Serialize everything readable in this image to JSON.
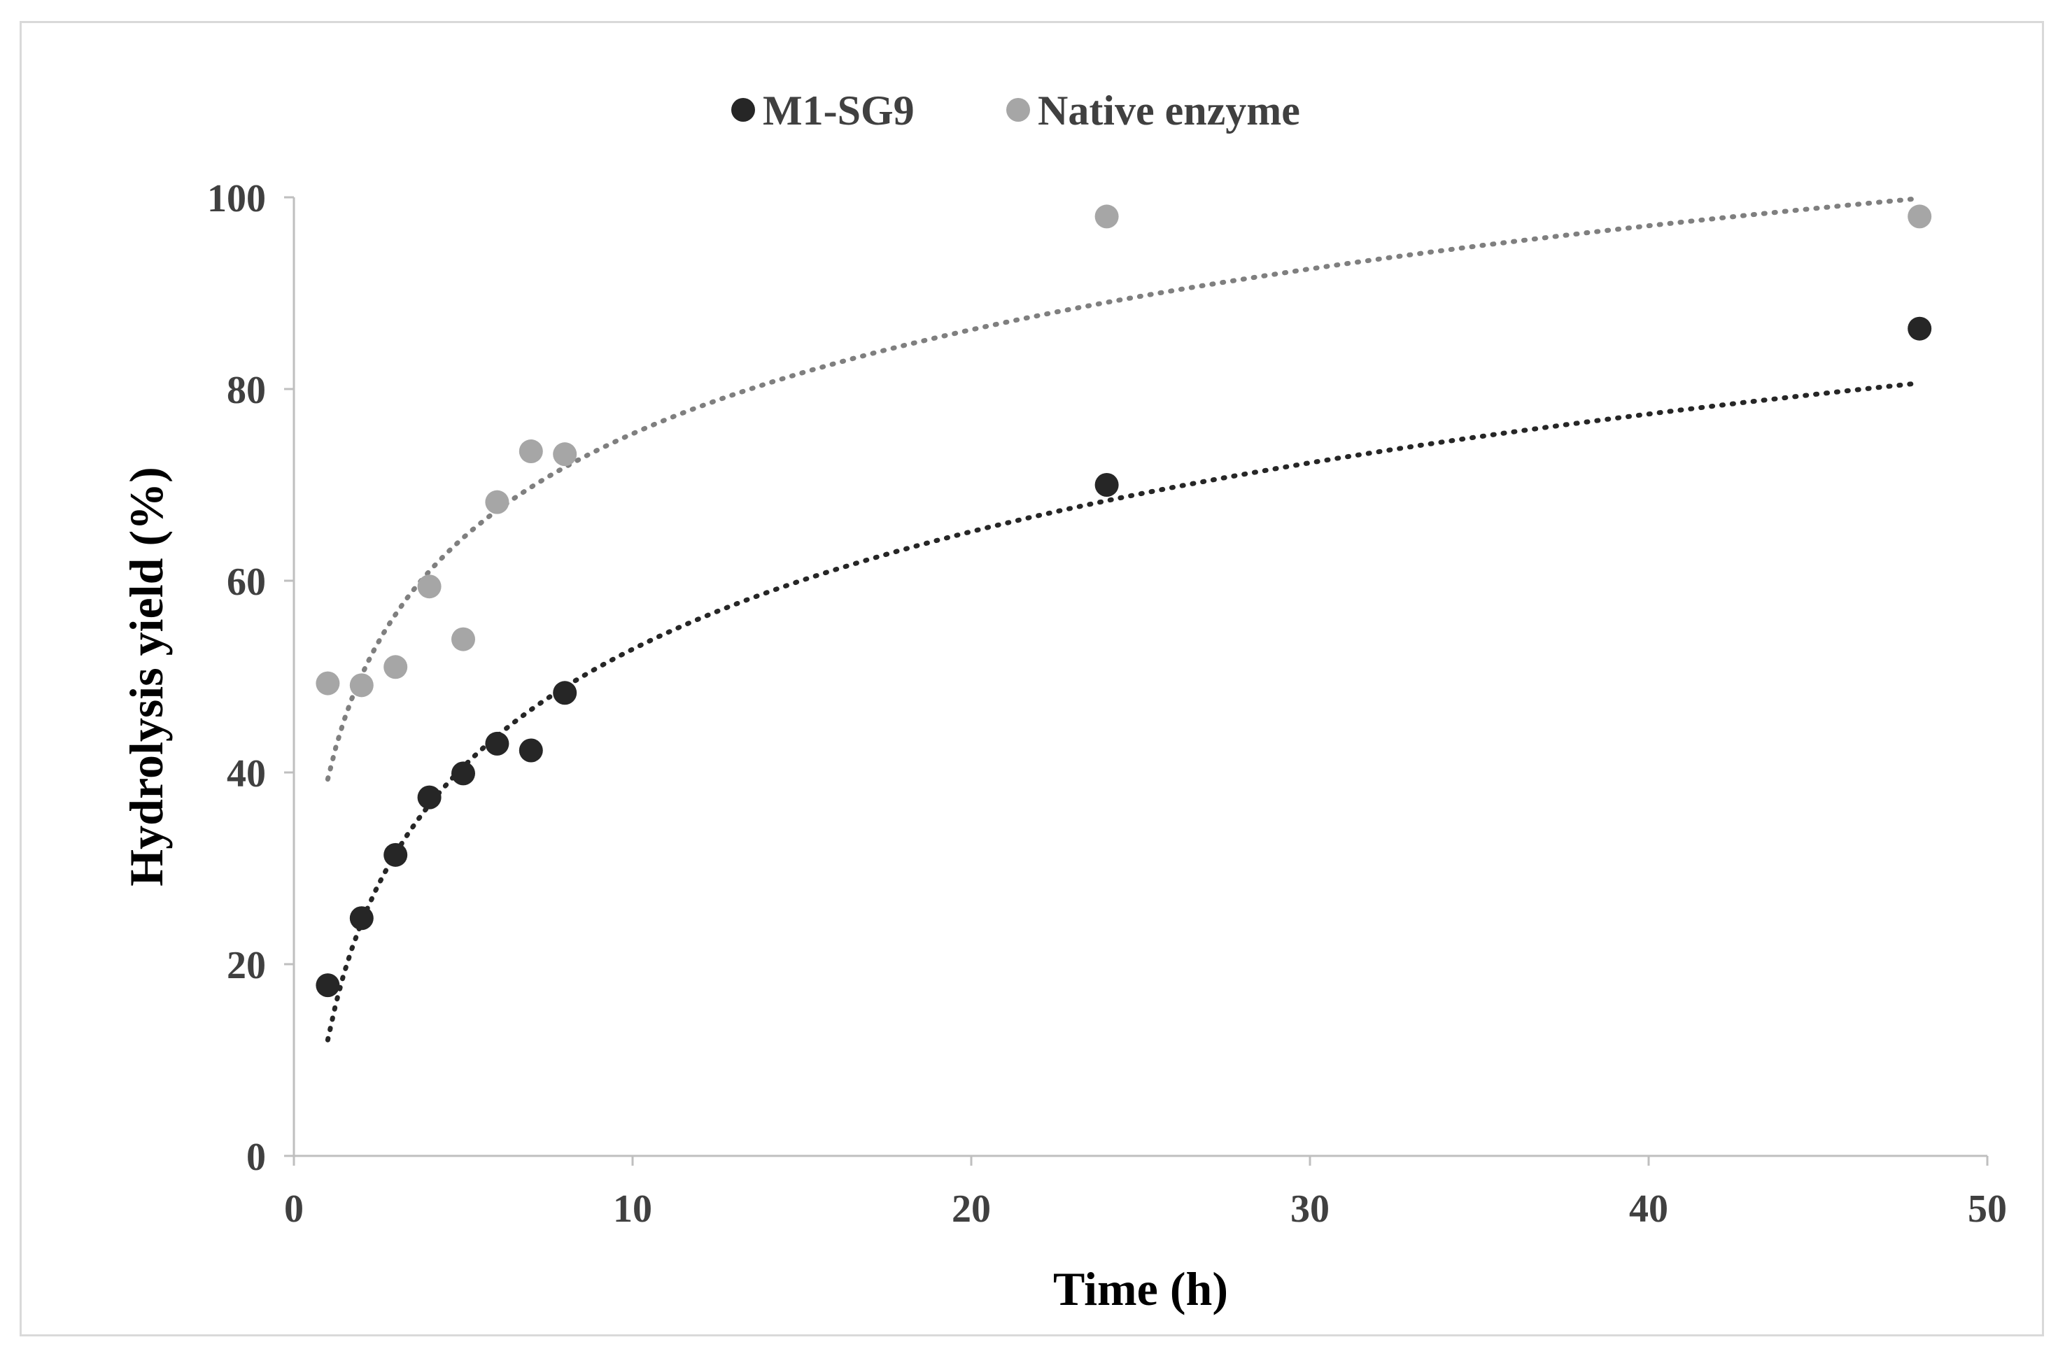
{
  "chart_data": {
    "type": "scatter",
    "title": "",
    "xlabel": "Time (h)",
    "ylabel": "Hydrolysis yield (%)",
    "xlim": [
      0,
      50
    ],
    "ylim": [
      0,
      100
    ],
    "xticks": [
      0,
      10,
      20,
      30,
      40,
      50
    ],
    "yticks": [
      0,
      20,
      40,
      60,
      80,
      100
    ],
    "legend_position": "top-center",
    "grid": false,
    "series": [
      {
        "name": "M1-SG9",
        "color": "#262626",
        "trend_color": "#262626",
        "x": [
          1,
          2,
          3,
          4,
          5,
          6,
          7,
          8,
          24,
          48
        ],
        "y": [
          17.8,
          24.8,
          31.4,
          37.4,
          39.9,
          43.0,
          42.3,
          48.3,
          70.0,
          86.3
        ],
        "trendline": {
          "type": "log",
          "a": 12.1,
          "b": 17.7,
          "x_range": [
            1,
            48
          ]
        }
      },
      {
        "name": "Native enzyme",
        "color": "#a6a6a6",
        "trend_color": "#7f7f7f",
        "x": [
          1,
          2,
          3,
          4,
          5,
          6,
          7,
          8,
          24,
          48
        ],
        "y": [
          49.3,
          49.1,
          51.0,
          59.4,
          53.9,
          68.2,
          73.5,
          73.2,
          98.0,
          98.0
        ],
        "trendline": {
          "type": "log",
          "a": 39.3,
          "b": 15.65,
          "x_range": [
            1,
            48
          ]
        }
      }
    ]
  }
}
